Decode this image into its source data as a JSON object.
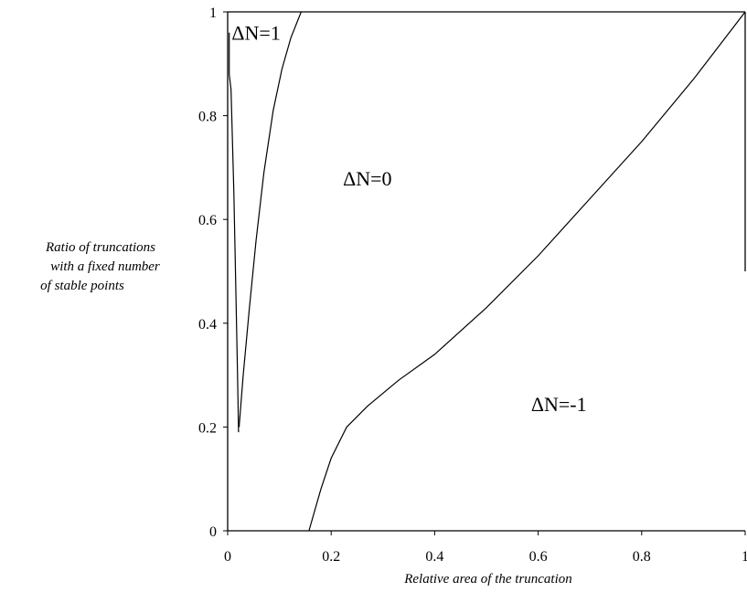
{
  "chart_data": {
    "type": "line",
    "xlabel": "Relative area of the truncation",
    "ylabel": [
      "Ratio of  truncations",
      "with a fixed number",
      "of stable points"
    ],
    "xlim": [
      0,
      1
    ],
    "ylim": [
      0,
      1
    ],
    "xticks": [
      "0",
      "0.2",
      "0.4",
      "0.6",
      "0.8",
      "1"
    ],
    "yticks": [
      "0",
      "0.2",
      "0.4",
      "0.6",
      "0.8",
      "1"
    ],
    "region_labels": [
      {
        "text": "ΔN=1",
        "x": 0.055,
        "y": 0.96
      },
      {
        "text": "ΔN=0",
        "x": 0.27,
        "y": 0.68
      },
      {
        "text": "ΔN=-1",
        "x": 0.64,
        "y": 0.245
      }
    ],
    "series": [
      {
        "points": [
          [
            0.003,
            0.96
          ],
          [
            0.003,
            0.88
          ],
          [
            0.0065,
            0.85
          ],
          [
            0.012,
            0.65
          ],
          [
            0.016,
            0.45
          ],
          [
            0.019,
            0.3
          ],
          [
            0.021,
            0.19
          ]
        ]
      },
      {
        "points": [
          [
            0.022,
            0.2
          ],
          [
            0.03,
            0.3
          ],
          [
            0.042,
            0.43
          ],
          [
            0.055,
            0.56
          ],
          [
            0.07,
            0.69
          ],
          [
            0.088,
            0.81
          ],
          [
            0.105,
            0.89
          ],
          [
            0.122,
            0.95
          ],
          [
            0.142,
            1.0
          ]
        ]
      },
      {
        "points": [
          [
            0.157,
            0.0
          ],
          [
            0.18,
            0.08
          ],
          [
            0.2,
            0.14
          ],
          [
            0.23,
            0.2
          ],
          [
            0.27,
            0.24
          ],
          [
            0.33,
            0.29
          ],
          [
            0.4,
            0.34
          ],
          [
            0.5,
            0.43
          ],
          [
            0.6,
            0.53
          ],
          [
            0.7,
            0.64
          ],
          [
            0.8,
            0.75
          ],
          [
            0.9,
            0.87
          ],
          [
            1.0,
            1.0
          ]
        ]
      }
    ]
  }
}
